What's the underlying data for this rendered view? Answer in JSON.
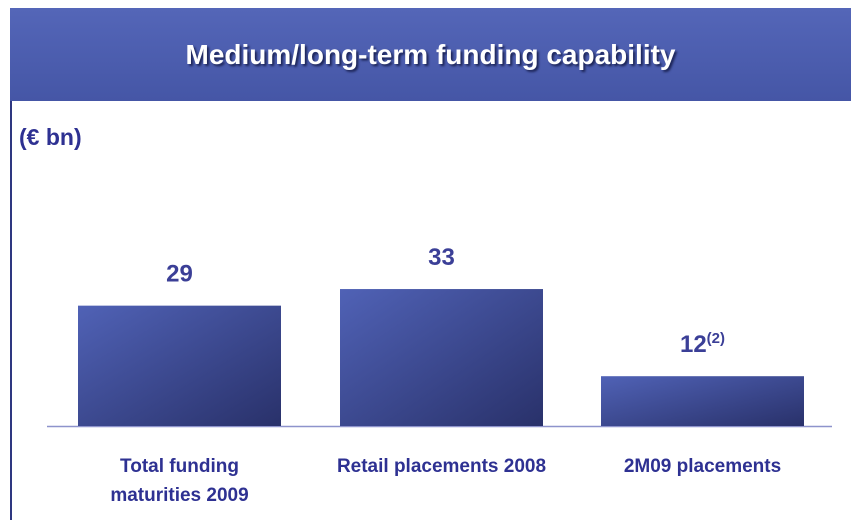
{
  "chart_data": {
    "type": "bar",
    "title": "Medium/long-term funding capability",
    "unit_label": "(€ bn)",
    "categories": [
      "Total funding maturities 2009",
      "Retail placements 2008",
      "2M09 placements"
    ],
    "values": [
      29,
      33,
      12
    ],
    "value_label_notes": [
      null,
      null,
      "(2)"
    ],
    "color": "#3f4d9e"
  }
}
